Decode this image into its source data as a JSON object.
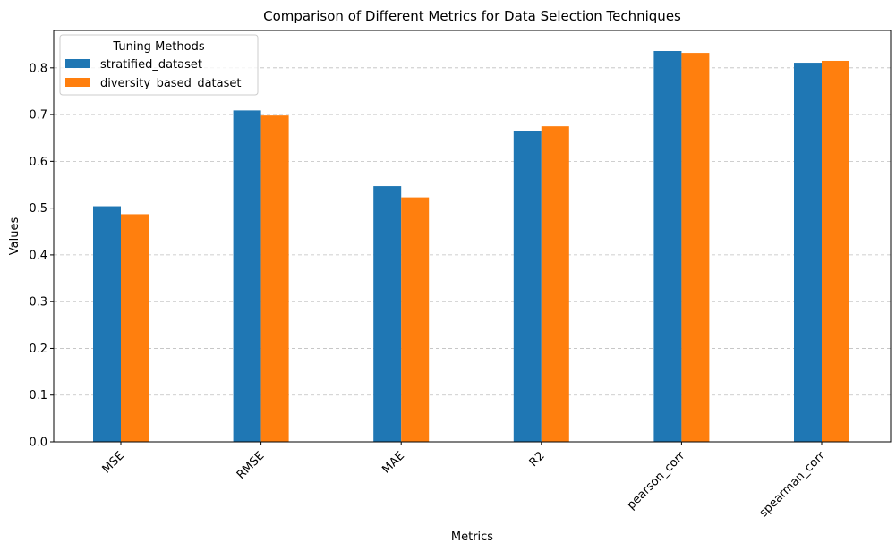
{
  "chart_data": {
    "type": "bar",
    "title": "Comparison of Different Metrics for Data Selection Techniques",
    "xlabel": "Metrics",
    "ylabel": "Values",
    "categories": [
      "MSE",
      "RMSE",
      "MAE",
      "R2",
      "pearson_corr",
      "spearman_corr"
    ],
    "series": [
      {
        "name": "stratified_dataset",
        "color": "#1f77b4",
        "values": [
          0.504,
          0.709,
          0.547,
          0.665,
          0.836,
          0.811
        ]
      },
      {
        "name": "diversity_based_dataset",
        "color": "#ff7f0e",
        "values": [
          0.487,
          0.698,
          0.523,
          0.675,
          0.832,
          0.815
        ]
      }
    ],
    "ylim": [
      0,
      0.88
    ],
    "yticks": [
      0.0,
      0.1,
      0.2,
      0.3,
      0.4,
      0.5,
      0.6,
      0.7,
      0.8
    ],
    "ytick_labels": [
      "0.0",
      "0.1",
      "0.2",
      "0.3",
      "0.4",
      "0.5",
      "0.6",
      "0.7",
      "0.8"
    ],
    "grid": "y-dashed",
    "legend": {
      "title": "Tuning Methods",
      "placement": "top-left"
    }
  }
}
